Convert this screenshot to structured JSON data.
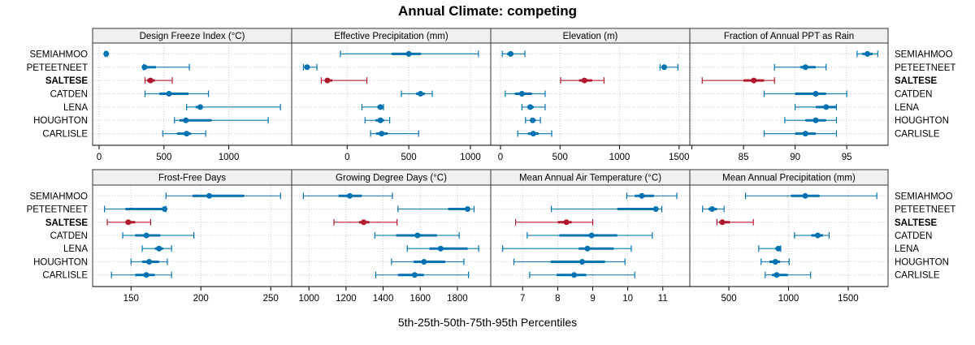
{
  "chart_data": {
    "type": "dotplot-percentiles",
    "title": "Annual Climate: competing",
    "xlabel": "5th-25th-50th-75th-95th Percentiles",
    "highlight_site": "SALTESE",
    "sites": [
      "SEMIAHMOO",
      "PETEETNEET",
      "SALTESE",
      "CATDEN",
      "LENA",
      "HOUGHTON",
      "CARLISLE"
    ],
    "colors": {
      "default": "#0072b2",
      "highlight": "#b2182b",
      "strip_bg": "#f0f0f0",
      "grid": "#c8c8c8"
    },
    "legend": "none",
    "grid": true,
    "panels": [
      {
        "title": "Design Freeze Index (°C)",
        "xlim": [
          -50,
          1485
        ],
        "ticks": [
          0,
          500,
          1000
        ],
        "tick_labels": [
          "0",
          "500",
          "1000"
        ],
        "values": [
          [
            45,
            50,
            55,
            58,
            62
          ],
          [
            344,
            345,
            350,
            438,
            696
          ],
          [
            354,
            370,
            396,
            430,
            564
          ],
          [
            354,
            465,
            539,
            690,
            843
          ],
          [
            675,
            745,
            780,
            800,
            1398
          ],
          [
            581,
            620,
            669,
            868,
            1304
          ],
          [
            491,
            600,
            675,
            710,
            822
          ]
        ]
      },
      {
        "title": "Effective Precipitation (mm)",
        "xlim": [
          -450,
          1165
        ],
        "ticks": [
          0,
          500,
          1000
        ],
        "tick_labels": [
          "0",
          "500",
          "1000"
        ],
        "values": [
          [
            -55,
            360,
            500,
            600,
            1065
          ],
          [
            -355,
            -340,
            -325,
            -310,
            -245
          ],
          [
            -210,
            -180,
            -160,
            -120,
            160
          ],
          [
            440,
            560,
            595,
            630,
            690
          ],
          [
            120,
            245,
            270,
            290,
            295
          ],
          [
            145,
            230,
            270,
            300,
            345
          ],
          [
            190,
            235,
            280,
            330,
            580
          ]
        ]
      },
      {
        "title": "Elevation (m)",
        "xlim": [
          -82,
          1590
        ],
        "ticks": [
          0,
          500,
          1000,
          1500
        ],
        "tick_labels": [
          "0",
          "500",
          "1000",
          "1500"
        ],
        "values": [
          [
            15,
            55,
            85,
            110,
            205
          ],
          [
            1340,
            1360,
            1375,
            1385,
            1490
          ],
          [
            505,
            660,
            705,
            770,
            870
          ],
          [
            40,
            120,
            180,
            265,
            375
          ],
          [
            180,
            225,
            250,
            280,
            375
          ],
          [
            210,
            250,
            270,
            295,
            335
          ],
          [
            145,
            230,
            275,
            320,
            430
          ]
        ]
      },
      {
        "title": "Fraction of Annual PPT as Rain",
        "xlim": [
          79.8,
          99.0
        ],
        "ticks": [
          80,
          85,
          90,
          95
        ],
        "tick_labels": [
          "",
          "85",
          "90",
          "95"
        ],
        "values": [
          [
            96,
            96.5,
            97,
            97.5,
            98
          ],
          [
            88,
            90.5,
            91,
            92,
            93
          ],
          [
            81,
            85,
            86,
            87,
            88
          ],
          [
            87,
            90,
            92,
            93,
            95
          ],
          [
            90,
            92,
            93,
            94,
            94
          ],
          [
            89,
            91,
            92,
            93,
            94
          ],
          [
            87,
            90,
            91,
            92,
            94
          ]
        ]
      },
      {
        "title": "Frost-Free Days",
        "xlim": [
          122.5,
          265
        ],
        "ticks": [
          150,
          200,
          250
        ],
        "tick_labels": [
          "150",
          "200",
          "250"
        ],
        "values": [
          [
            175,
            194,
            206,
            231,
            257
          ],
          [
            131,
            146,
            174,
            174,
            175
          ],
          [
            133,
            146,
            148,
            153,
            164
          ],
          [
            144,
            153,
            161,
            171,
            195
          ],
          [
            158,
            167,
            170,
            173,
            179
          ],
          [
            150,
            158,
            163,
            170,
            176
          ],
          [
            136,
            153,
            161,
            167,
            179
          ]
        ]
      },
      {
        "title": "Growing Degree Days (°C)",
        "xlim": [
          907,
          1980
        ],
        "ticks": [
          1000,
          1200,
          1400,
          1600,
          1800
        ],
        "tick_labels": [
          "1000",
          "1200",
          "1400",
          "1600",
          "1800"
        ],
        "values": [
          [
            970,
            1160,
            1220,
            1285,
            1450
          ],
          [
            1480,
            1750,
            1855,
            1860,
            1890
          ],
          [
            1135,
            1270,
            1295,
            1325,
            1475
          ],
          [
            1355,
            1470,
            1585,
            1690,
            1810
          ],
          [
            1530,
            1650,
            1710,
            1855,
            1915
          ],
          [
            1445,
            1565,
            1620,
            1735,
            1835
          ],
          [
            1360,
            1480,
            1570,
            1620,
            1860
          ]
        ]
      },
      {
        "title": "Mean Annual Air Temperature (°C)",
        "xlim": [
          6.09,
          11.77
        ],
        "ticks": [
          7,
          8,
          9,
          10,
          11
        ],
        "tick_labels": [
          "7",
          "8",
          "9",
          "10",
          "11"
        ],
        "values": [
          [
            9.97,
            10.2,
            10.4,
            10.75,
            11.4
          ],
          [
            7.82,
            9.7,
            10.8,
            10.85,
            10.97
          ],
          [
            6.8,
            8.0,
            8.25,
            8.4,
            9.0
          ],
          [
            7.13,
            8.05,
            8.97,
            9.7,
            10.7
          ],
          [
            6.43,
            8.6,
            8.85,
            9.6,
            10.1
          ],
          [
            6.75,
            7.8,
            8.7,
            9.35,
            9.92
          ],
          [
            7.2,
            7.97,
            8.47,
            8.82,
            10.2
          ]
        ]
      },
      {
        "title": "Mean Annual Precipitation (mm)",
        "xlim": [
          173,
          1834
        ],
        "ticks": [
          500,
          1000,
          1500
        ],
        "tick_labels": [
          "500",
          "1000",
          "1500"
        ],
        "values": [
          [
            640,
            1020,
            1140,
            1260,
            1740
          ],
          [
            280,
            330,
            360,
            400,
            460
          ],
          [
            400,
            420,
            445,
            510,
            705
          ],
          [
            1050,
            1190,
            1245,
            1290,
            1340
          ],
          [
            750,
            890,
            915,
            925,
            935
          ],
          [
            770,
            840,
            890,
            930,
            1005
          ],
          [
            805,
            860,
            900,
            995,
            1185
          ]
        ]
      }
    ]
  }
}
